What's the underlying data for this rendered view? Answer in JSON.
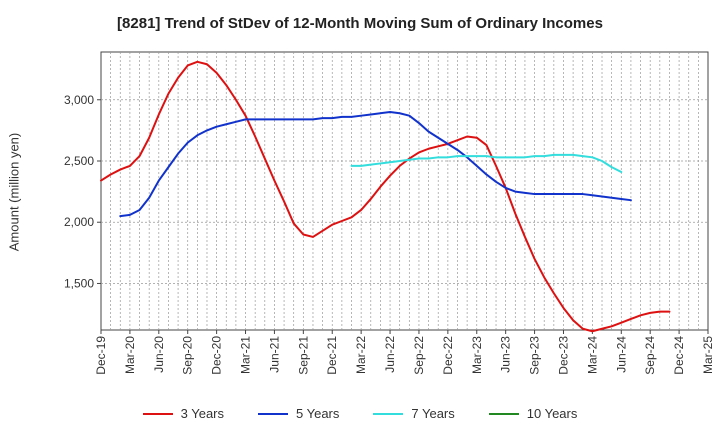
{
  "chart_data": {
    "type": "line",
    "title": "[8281]  Trend of StDev of 12-Month Moving Sum of Ordinary Incomes",
    "xlabel": "",
    "ylabel": "Amount (million yen)",
    "ylim": [
      1120,
      3390
    ],
    "yticks": [
      1500,
      2000,
      2500,
      3000
    ],
    "ytick_labels": [
      "1,500",
      "2,000",
      "2,500",
      "3,000"
    ],
    "x_start": "Dec-19",
    "x_tick_labels": [
      "Dec-19",
      "Mar-20",
      "Jun-20",
      "Sep-20",
      "Dec-20",
      "Mar-21",
      "Jun-21",
      "Sep-21",
      "Dec-21",
      "Mar-22",
      "Jun-22",
      "Sep-22",
      "Dec-22",
      "Mar-23",
      "Jun-23",
      "Sep-23",
      "Dec-23",
      "Mar-24",
      "Jun-24",
      "Sep-24",
      "Dec-24",
      "Mar-25"
    ],
    "series": [
      {
        "name": "3 Years",
        "color": "#dd1111",
        "start_index": 0,
        "values": [
          2340,
          2390,
          2430,
          2460,
          2540,
          2690,
          2880,
          3050,
          3180,
          3280,
          3310,
          3290,
          3220,
          3120,
          3000,
          2870,
          2700,
          2520,
          2340,
          2170,
          1990,
          1900,
          1880,
          1930,
          1980,
          2010,
          2040,
          2100,
          2190,
          2290,
          2380,
          2460,
          2520,
          2570,
          2600,
          2620,
          2640,
          2670,
          2700,
          2690,
          2630,
          2460,
          2280,
          2070,
          1880,
          1700,
          1550,
          1420,
          1300,
          1200,
          1130,
          1110,
          1130,
          1150,
          1180,
          1210,
          1240,
          1260,
          1270,
          1270
        ]
      },
      {
        "name": "5 Years",
        "color": "#1133cc",
        "start_index": 2,
        "values": [
          2050,
          2060,
          2100,
          2200,
          2340,
          2450,
          2560,
          2650,
          2710,
          2750,
          2780,
          2800,
          2820,
          2840,
          2840,
          2840,
          2840,
          2840,
          2840,
          2840,
          2840,
          2850,
          2850,
          2860,
          2860,
          2870,
          2880,
          2890,
          2900,
          2890,
          2870,
          2810,
          2740,
          2690,
          2640,
          2590,
          2530,
          2460,
          2390,
          2330,
          2280,
          2250,
          2240,
          2230,
          2230,
          2230,
          2230,
          2230,
          2230,
          2220,
          2210,
          2200,
          2190,
          2180
        ]
      },
      {
        "name": "7 Years",
        "color": "#33dddd",
        "start_index": 26,
        "values": [
          2460,
          2460,
          2470,
          2480,
          2490,
          2500,
          2510,
          2520,
          2520,
          2530,
          2530,
          2540,
          2540,
          2540,
          2540,
          2530,
          2530,
          2530,
          2530,
          2540,
          2540,
          2550,
          2550,
          2550,
          2540,
          2530,
          2500,
          2450,
          2410
        ]
      },
      {
        "name": "10 Years",
        "color": "#228822",
        "start_index": 0,
        "values": []
      }
    ]
  }
}
